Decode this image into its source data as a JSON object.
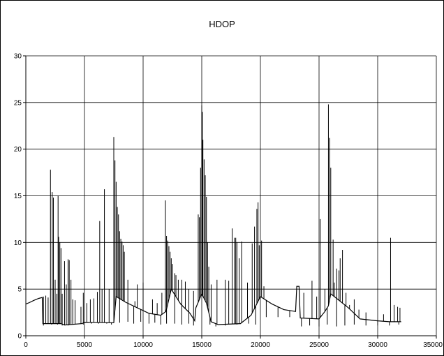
{
  "chart_data": {
    "type": "line",
    "title": "HDOP",
    "xlabel": "",
    "ylabel": "",
    "xlim": [
      0,
      35000
    ],
    "ylim": [
      0,
      30
    ],
    "x_ticks": [
      "0",
      "5000",
      "10000",
      "15000",
      "20000",
      "25000",
      "30000",
      "35000"
    ],
    "y_ticks": [
      "0",
      "5",
      "10",
      "15",
      "20",
      "25",
      "30"
    ],
    "grid": true,
    "legend": "none",
    "line_color": "#000000",
    "series": [
      {
        "baseline": [
          [
            0,
            3.4
          ],
          [
            300,
            3.55
          ],
          [
            700,
            3.8
          ],
          [
            1100,
            4.0
          ],
          [
            1400,
            4.1
          ],
          [
            1450,
            1.3
          ],
          [
            3000,
            1.3
          ],
          [
            3300,
            1.15
          ],
          [
            4800,
            1.3
          ],
          [
            5000,
            1.45
          ],
          [
            7500,
            1.4
          ],
          [
            7700,
            4.2
          ],
          [
            8500,
            3.6
          ],
          [
            9500,
            3.0
          ],
          [
            10500,
            2.4
          ],
          [
            11500,
            2.2
          ],
          [
            11950,
            2.6
          ],
          [
            12400,
            5.0
          ],
          [
            13200,
            3.4
          ],
          [
            14000,
            2.4
          ],
          [
            14400,
            1.6
          ],
          [
            14500,
            3.0
          ],
          [
            15000,
            4.5
          ],
          [
            15400,
            3.5
          ],
          [
            15800,
            1.5
          ],
          [
            16400,
            1.2
          ],
          [
            18300,
            1.3
          ],
          [
            19200,
            2.2
          ],
          [
            20000,
            4.2
          ],
          [
            21000,
            3.4
          ],
          [
            22000,
            2.8
          ],
          [
            23000,
            2.6
          ],
          [
            23100,
            5.3
          ],
          [
            23300,
            5.3
          ],
          [
            23400,
            1.9
          ],
          [
            25000,
            1.8
          ],
          [
            25500,
            2.6
          ],
          [
            25800,
            3.2
          ],
          [
            26000,
            4.5
          ],
          [
            26500,
            4.0
          ],
          [
            27500,
            3.0
          ],
          [
            28500,
            1.8
          ],
          [
            30000,
            1.6
          ],
          [
            31000,
            1.5
          ],
          [
            32000,
            1.5
          ]
        ],
        "spikes": [
          [
            1500,
            4.2
          ],
          [
            1700,
            4.3
          ],
          [
            1900,
            4.1
          ],
          [
            2100,
            17.8
          ],
          [
            2250,
            15.4
          ],
          [
            2350,
            14.8
          ],
          [
            2500,
            6.0
          ],
          [
            2650,
            4.5
          ],
          [
            2750,
            15.0
          ],
          [
            2800,
            10.6
          ],
          [
            2900,
            10.0
          ],
          [
            3000,
            9.4
          ],
          [
            3100,
            4.5
          ],
          [
            3300,
            8.0
          ],
          [
            3450,
            5.5
          ],
          [
            3600,
            8.2
          ],
          [
            3700,
            8.1
          ],
          [
            3850,
            6.0
          ],
          [
            4000,
            3.9
          ],
          [
            4200,
            3.8
          ],
          [
            4700,
            3.1
          ],
          [
            4900,
            4.6
          ],
          [
            5200,
            3.5
          ],
          [
            5500,
            3.9
          ],
          [
            5800,
            4.0
          ],
          [
            6100,
            4.7
          ],
          [
            6300,
            12.3
          ],
          [
            6500,
            5.0
          ],
          [
            6700,
            15.7
          ],
          [
            7100,
            5.0
          ],
          [
            7500,
            21.3
          ],
          [
            7600,
            18.8
          ],
          [
            7700,
            16.5
          ],
          [
            7800,
            13.8
          ],
          [
            7900,
            13.0
          ],
          [
            8000,
            11.2
          ],
          [
            8100,
            10.4
          ],
          [
            8200,
            10.1
          ],
          [
            8300,
            9.7
          ],
          [
            8400,
            9.0
          ],
          [
            8700,
            6.0
          ],
          [
            9300,
            3.7
          ],
          [
            9500,
            5.5
          ],
          [
            10000,
            5.7
          ],
          [
            10800,
            3.9
          ],
          [
            11200,
            3.5
          ],
          [
            11600,
            4.6
          ],
          [
            11900,
            14.5
          ],
          [
            12000,
            10.7
          ],
          [
            12100,
            10.2
          ],
          [
            12200,
            9.6
          ],
          [
            12300,
            9.0
          ],
          [
            12400,
            8.3
          ],
          [
            12500,
            7.7
          ],
          [
            12700,
            6.7
          ],
          [
            12800,
            6.5
          ],
          [
            13000,
            6.0
          ],
          [
            13300,
            6.0
          ],
          [
            13600,
            5.8
          ],
          [
            13900,
            5.0
          ],
          [
            14300,
            4.8
          ],
          [
            14700,
            13.0
          ],
          [
            14800,
            12.7
          ],
          [
            14900,
            18.0
          ],
          [
            15000,
            24.7
          ],
          [
            15050,
            24.0
          ],
          [
            15100,
            21.0
          ],
          [
            15200,
            18.9
          ],
          [
            15300,
            17.2
          ],
          [
            15400,
            14.9
          ],
          [
            15500,
            10.0
          ],
          [
            15600,
            7.4
          ],
          [
            15800,
            5.5
          ],
          [
            16300,
            6.0
          ],
          [
            17000,
            6.0
          ],
          [
            17300,
            5.9
          ],
          [
            17600,
            11.5
          ],
          [
            17800,
            10.5
          ],
          [
            17900,
            10.5
          ],
          [
            18000,
            10.0
          ],
          [
            18200,
            8.3
          ],
          [
            18400,
            10.1
          ],
          [
            18900,
            5.7
          ],
          [
            19300,
            9.9
          ],
          [
            19500,
            11.7
          ],
          [
            19700,
            13.6
          ],
          [
            19800,
            14.3
          ],
          [
            19900,
            9.7
          ],
          [
            20100,
            10.2
          ],
          [
            20300,
            5.3
          ],
          [
            23700,
            4.6
          ],
          [
            24400,
            5.9
          ],
          [
            24800,
            4.2
          ],
          [
            25100,
            12.5
          ],
          [
            25500,
            5.0
          ],
          [
            25800,
            24.8
          ],
          [
            25900,
            21.2
          ],
          [
            26000,
            18.0
          ],
          [
            26200,
            10.3
          ],
          [
            26300,
            5.7
          ],
          [
            26500,
            7.2
          ],
          [
            26700,
            7.0
          ],
          [
            26800,
            8.3
          ],
          [
            27000,
            9.2
          ],
          [
            27300,
            4.6
          ],
          [
            27600,
            3.3
          ],
          [
            28000,
            3.9
          ],
          [
            28400,
            2.8
          ],
          [
            29000,
            2.5
          ],
          [
            30500,
            2.3
          ],
          [
            31100,
            10.5
          ],
          [
            31400,
            3.3
          ],
          [
            31700,
            3.1
          ],
          [
            31900,
            3.0
          ]
        ],
        "dips": [
          [
            1500,
            1.1
          ],
          [
            2200,
            1.2
          ],
          [
            2700,
            1.2
          ],
          [
            3100,
            1.1
          ],
          [
            3600,
            1.1
          ],
          [
            4200,
            1.2
          ],
          [
            4900,
            1.2
          ],
          [
            5600,
            1.3
          ],
          [
            6200,
            1.3
          ],
          [
            6900,
            1.3
          ],
          [
            7300,
            1.2
          ],
          [
            8000,
            1.4
          ],
          [
            8700,
            1.5
          ],
          [
            9200,
            1.3
          ],
          [
            9800,
            1.5
          ],
          [
            10500,
            1.3
          ],
          [
            11000,
            1.4
          ],
          [
            11500,
            1.2
          ],
          [
            12000,
            1.3
          ],
          [
            12700,
            1.3
          ],
          [
            13300,
            1.2
          ],
          [
            13900,
            1.3
          ],
          [
            14300,
            1.1
          ],
          [
            15700,
            1.2
          ],
          [
            16200,
            1.0
          ],
          [
            17000,
            1.1
          ],
          [
            18000,
            1.2
          ],
          [
            19000,
            1.3
          ],
          [
            19600,
            1.2
          ],
          [
            20500,
            2.0
          ],
          [
            21500,
            2.0
          ],
          [
            22500,
            2.0
          ],
          [
            23500,
            1.0
          ],
          [
            24200,
            1.1
          ],
          [
            25000,
            1.0
          ],
          [
            25700,
            1.2
          ],
          [
            26500,
            1.0
          ],
          [
            27200,
            1.1
          ],
          [
            28000,
            1.2
          ],
          [
            29000,
            1.1
          ],
          [
            30000,
            1.1
          ],
          [
            31000,
            1.1
          ],
          [
            31800,
            1.2
          ]
        ]
      }
    ]
  }
}
